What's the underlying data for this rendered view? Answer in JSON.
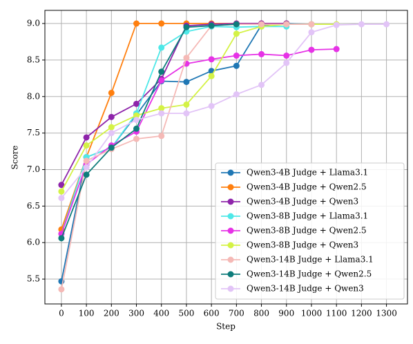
{
  "chart_data": {
    "type": "line",
    "xlabel": "Step",
    "ylabel": "Score",
    "x": [
      0,
      100,
      200,
      300,
      400,
      500,
      600,
      700,
      800,
      900,
      1000,
      1100,
      1200,
      1300
    ],
    "xlim": [
      -66,
      1384
    ],
    "ylim": [
      5.16,
      9.18
    ],
    "xticks": [
      0,
      100,
      200,
      300,
      400,
      500,
      600,
      700,
      800,
      900,
      1000,
      1100,
      1200,
      1300
    ],
    "yticks": [
      5.5,
      {
        "value": 6,
        "label": "6.0"
      },
      6.5,
      {
        "value": 7,
        "label": "7.0"
      },
      7.5,
      {
        "value": 8,
        "label": "8.0"
      },
      8.5,
      {
        "value": 9,
        "label": "9.0"
      }
    ],
    "grid": true,
    "legend": "lower right",
    "series": [
      {
        "name": "Qwen3-4B Judge + Llama3.1",
        "color": "#1f77b4",
        "values": [
          5.47,
          7.17,
          7.3,
          7.75,
          8.21,
          8.2,
          8.35,
          8.42,
          8.98,
          9.0,
          8.99,
          null,
          null,
          null
        ]
      },
      {
        "name": "Qwen3-4B Judge + Qwen2.5",
        "color": "#ff7f0e",
        "values": [
          6.18,
          7.17,
          8.05,
          9.0,
          9.0,
          9.0,
          9.0,
          9.0,
          9.0,
          9.0,
          null,
          null,
          null,
          null
        ]
      },
      {
        "name": "Qwen3-4B Judge + Qwen3",
        "color": "#8e24aa",
        "values": [
          6.79,
          7.44,
          7.72,
          7.9,
          8.24,
          8.97,
          8.99,
          9.0,
          9.0,
          9.0,
          null,
          null,
          null,
          null
        ]
      },
      {
        "name": "Qwen3-8B Judge + Llama3.1",
        "color": "#4ee8e8",
        "values": [
          6.12,
          7.17,
          7.3,
          7.77,
          8.67,
          8.89,
          8.96,
          8.95,
          8.96,
          8.96,
          null,
          null,
          null,
          null
        ]
      },
      {
        "name": "Qwen3-8B Judge + Qwen2.5",
        "color": "#e632e6",
        "values": [
          6.12,
          7.07,
          7.33,
          7.52,
          8.22,
          8.45,
          8.51,
          8.56,
          8.58,
          8.56,
          8.64,
          8.65,
          null,
          null
        ]
      },
      {
        "name": "Qwen3-8B Judge + Qwen3",
        "color": "#d4f245",
        "values": [
          6.7,
          7.33,
          7.58,
          7.74,
          7.84,
          7.89,
          8.28,
          8.86,
          8.96,
          8.99,
          8.99,
          8.99,
          null,
          null
        ]
      },
      {
        "name": "Qwen3-14B Judge + Llama3.1",
        "color": "#f5b9b6",
        "values": [
          5.36,
          7.12,
          7.28,
          7.42,
          7.46,
          8.53,
          8.97,
          8.99,
          8.99,
          8.99,
          8.99,
          null,
          null,
          null
        ]
      },
      {
        "name": "Qwen3-14B Judge + Qwen2.5",
        "color": "#0e7c7b",
        "values": [
          6.06,
          6.93,
          7.3,
          7.56,
          8.34,
          8.95,
          8.97,
          8.99,
          null,
          null,
          null,
          null,
          null,
          null
        ]
      },
      {
        "name": "Qwen3-14B Judge + Qwen3",
        "color": "#e2c4f7",
        "values": [
          6.61,
          7.03,
          7.5,
          7.68,
          7.77,
          7.77,
          7.87,
          8.03,
          8.16,
          8.46,
          8.88,
          8.98,
          8.99,
          8.99
        ]
      }
    ]
  }
}
